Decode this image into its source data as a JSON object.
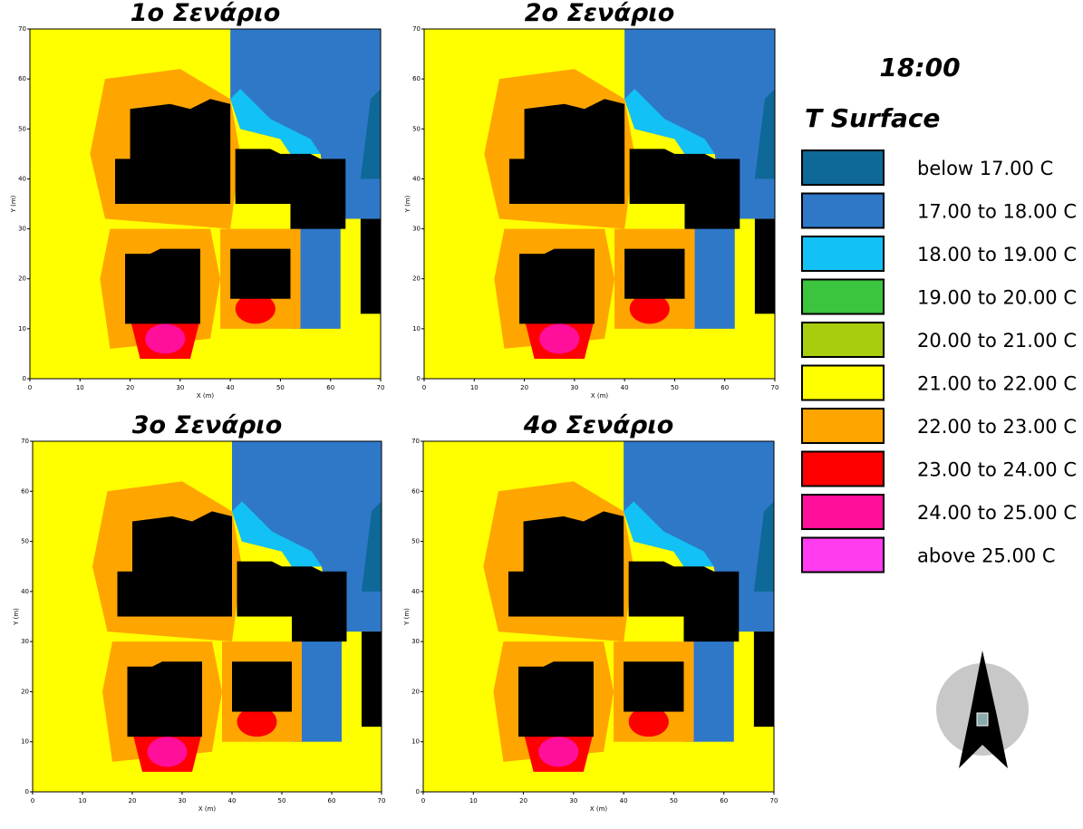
{
  "time": "18:00",
  "legend": {
    "title": "T Surface",
    "items": [
      {
        "label": "below 17.00 C",
        "color": "#0e6898"
      },
      {
        "label": "17.00 to 18.00 C",
        "color": "#2f78c8"
      },
      {
        "label": "18.00 to 19.00 C",
        "color": "#12c1f5"
      },
      {
        "label": "19.00 to 20.00 C",
        "color": "#3bc43d"
      },
      {
        "label": "20.00 to 21.00 C",
        "color": "#a8cc0e"
      },
      {
        "label": "21.00 to 22.00 C",
        "color": "#ffff00"
      },
      {
        "label": "22.00 to 23.00 C",
        "color": "#ffa500"
      },
      {
        "label": "23.00 to 24.00 C",
        "color": "#ff0000"
      },
      {
        "label": "24.00 to 25.00 C",
        "color": "#ff0f9a"
      },
      {
        "label": "above 25.00 C",
        "color": "#ff3cf0"
      }
    ]
  },
  "panels": [
    {
      "title": "1ο Σενάριο"
    },
    {
      "title": "2ο Σενάριο"
    },
    {
      "title": "3ο Σενάριο"
    },
    {
      "title": "4ο Σενάριο"
    }
  ],
  "axes": {
    "xlabel": "X (m)",
    "ylabel": "Y (m)",
    "xlim": [
      0,
      70
    ],
    "ylim": [
      0,
      70
    ],
    "xticks": [
      0,
      10,
      20,
      30,
      40,
      50,
      60,
      70
    ],
    "yticks": [
      0,
      10,
      20,
      30,
      40,
      50,
      60,
      70
    ]
  }
}
